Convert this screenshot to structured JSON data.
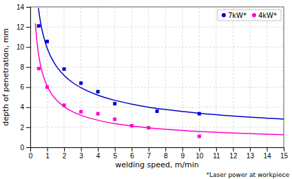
{
  "chart_data": {
    "type": "scatter",
    "xlabel": "welding speed, m/min",
    "ylabel": "depth of penetration, mm",
    "footnote": "*Laser power at workpiece",
    "xlim": [
      0,
      15
    ],
    "ylim": [
      0,
      14
    ],
    "xticks": [
      0,
      1,
      2,
      3,
      4,
      5,
      6,
      7,
      8,
      9,
      10,
      11,
      12,
      13,
      14,
      15
    ],
    "yticks": [
      0,
      2,
      4,
      6,
      8,
      10,
      12,
      14
    ],
    "grid": true,
    "legend": "upper right",
    "series": [
      {
        "type": "line",
        "color": "#0000CC",
        "x": [
          0.48,
          0.55,
          0.65,
          0.8,
          1,
          1.25,
          1.5,
          2,
          2.5,
          3,
          4,
          5,
          6,
          7,
          8,
          10,
          12,
          15
        ],
        "values": [
          13.895,
          13.046,
          12.074,
          10.966,
          9.889,
          8.918,
          8.195,
          7.172,
          6.468,
          5.944,
          5.202,
          4.691,
          4.311,
          4.005,
          3.773,
          3.402,
          3.127,
          2.819
        ]
      },
      {
        "name": "7kW*",
        "type": "scatter",
        "color": "#0000CC",
        "marker": "square",
        "x": [
          0.5,
          1.0,
          2.0,
          3.0,
          4.0,
          5.0,
          7.5,
          10.0
        ],
        "values": [
          12.1,
          10.55,
          7.8,
          6.4,
          5.55,
          4.35,
          3.6,
          3.35
        ]
      },
      {
        "type": "line",
        "color": "#FF00CC",
        "x": [
          0.3,
          0.4,
          0.5,
          0.65,
          0.8,
          1,
          1.25,
          1.5,
          2,
          2.5,
          3,
          4,
          5,
          6,
          7,
          8,
          10,
          12,
          15
        ],
        "values": [
          12.358,
          10.438,
          9.157,
          7.85,
          6.949,
          6.096,
          5.348,
          4.805,
          4.059,
          3.561,
          3.199,
          2.702,
          2.365,
          2.13,
          1.946,
          1.799,
          1.578,
          1.418,
          1.244
        ]
      },
      {
        "name": "4kW*",
        "type": "scatter",
        "color": "#FF00CC",
        "marker": "square",
        "x": [
          0.5,
          1.0,
          2.0,
          3.0,
          4.0,
          5.0,
          6.0,
          7.0,
          10.0
        ],
        "values": [
          7.85,
          6.0,
          4.2,
          3.55,
          3.35,
          2.8,
          2.15,
          1.95,
          1.1
        ]
      }
    ]
  }
}
